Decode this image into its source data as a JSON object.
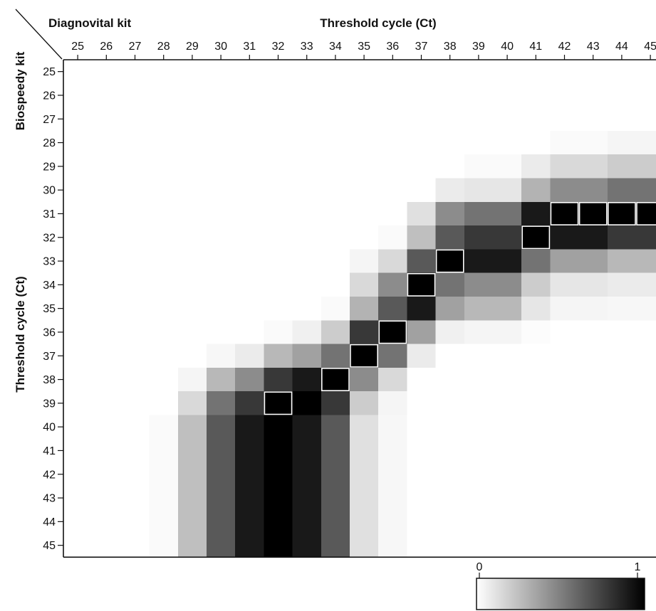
{
  "chart_data": {
    "type": "heatmap",
    "corner_x_title": "Diagnovital kit",
    "corner_y_title": "Biospeedy kit",
    "x_title": "Threshold cycle (Ct)",
    "y_title": "Threshold cycle (Ct)",
    "x_ticks": [
      "25",
      "26",
      "27",
      "28",
      "29",
      "30",
      "31",
      "32",
      "33",
      "34",
      "35",
      "36",
      "37",
      "38",
      "39",
      "40",
      "41",
      "42",
      "43",
      "44",
      "45"
    ],
    "y_ticks": [
      "25",
      "26",
      "27",
      "28",
      "29",
      "30",
      "31",
      "32",
      "33",
      "34",
      "35",
      "36",
      "37",
      "38",
      "39",
      "40",
      "41",
      "42",
      "43",
      "44",
      "45"
    ],
    "colorbar": {
      "min_label": "0",
      "max_label": "1",
      "min": 0,
      "max": 1
    },
    "cells": [
      {
        "y": 28,
        "x": [
          42,
          43
        ],
        "v": 0.02
      },
      {
        "y": 28,
        "x": [
          44,
          45
        ],
        "v": 0.04
      },
      {
        "y": 29,
        "x": [
          39,
          40
        ],
        "v": 0.02
      },
      {
        "y": 29,
        "x": [
          41,
          41
        ],
        "v": 0.08
      },
      {
        "y": 29,
        "x": [
          42,
          43
        ],
        "v": 0.15
      },
      {
        "y": 29,
        "x": [
          44,
          45
        ],
        "v": 0.2
      },
      {
        "y": 30,
        "x": [
          38,
          38
        ],
        "v": 0.08
      },
      {
        "y": 30,
        "x": [
          39,
          40
        ],
        "v": 0.1
      },
      {
        "y": 30,
        "x": [
          41,
          41
        ],
        "v": 0.3
      },
      {
        "y": 30,
        "x": [
          42,
          43
        ],
        "v": 0.45
      },
      {
        "y": 30,
        "x": [
          44,
          45
        ],
        "v": 0.55
      },
      {
        "y": 31,
        "x": [
          37,
          37
        ],
        "v": 0.12
      },
      {
        "y": 31,
        "x": [
          38,
          38
        ],
        "v": 0.45
      },
      {
        "y": 31,
        "x": [
          39,
          40
        ],
        "v": 0.55
      },
      {
        "y": 31,
        "x": [
          41,
          41
        ],
        "v": 0.9
      },
      {
        "y": 31,
        "x": [
          42,
          42
        ],
        "v": 1,
        "h": 1
      },
      {
        "y": 31,
        "x": [
          43,
          43
        ],
        "v": 1,
        "h": 1
      },
      {
        "y": 31,
        "x": [
          44,
          44
        ],
        "v": 1,
        "h": 1
      },
      {
        "y": 31,
        "x": [
          45,
          45
        ],
        "v": 1,
        "h": 1
      },
      {
        "y": 32,
        "x": [
          36,
          36
        ],
        "v": 0.02
      },
      {
        "y": 32,
        "x": [
          37,
          37
        ],
        "v": 0.25
      },
      {
        "y": 32,
        "x": [
          38,
          38
        ],
        "v": 0.65
      },
      {
        "y": 32,
        "x": [
          39,
          40
        ],
        "v": 0.78
      },
      {
        "y": 32,
        "x": [
          41,
          41
        ],
        "v": 1,
        "h": 1
      },
      {
        "y": 32,
        "x": [
          42,
          43
        ],
        "v": 0.9
      },
      {
        "y": 32,
        "x": [
          44,
          45
        ],
        "v": 0.78
      },
      {
        "y": 33,
        "x": [
          35,
          35
        ],
        "v": 0.04
      },
      {
        "y": 33,
        "x": [
          36,
          36
        ],
        "v": 0.15
      },
      {
        "y": 33,
        "x": [
          37,
          37
        ],
        "v": 0.65
      },
      {
        "y": 33,
        "x": [
          38,
          38
        ],
        "v": 1,
        "h": 1
      },
      {
        "y": 33,
        "x": [
          39,
          40
        ],
        "v": 0.9
      },
      {
        "y": 33,
        "x": [
          41,
          41
        ],
        "v": 0.55
      },
      {
        "y": 33,
        "x": [
          42,
          43
        ],
        "v": 0.37
      },
      {
        "y": 33,
        "x": [
          44,
          45
        ],
        "v": 0.28
      },
      {
        "y": 34,
        "x": [
          35,
          35
        ],
        "v": 0.15
      },
      {
        "y": 34,
        "x": [
          36,
          36
        ],
        "v": 0.45
      },
      {
        "y": 34,
        "x": [
          37,
          37
        ],
        "v": 1,
        "h": 1
      },
      {
        "y": 34,
        "x": [
          38,
          38
        ],
        "v": 0.55
      },
      {
        "y": 34,
        "x": [
          39,
          40
        ],
        "v": 0.45
      },
      {
        "y": 34,
        "x": [
          41,
          41
        ],
        "v": 0.2
      },
      {
        "y": 34,
        "x": [
          42,
          43
        ],
        "v": 0.1
      },
      {
        "y": 34,
        "x": [
          44,
          45
        ],
        "v": 0.08
      },
      {
        "y": 35,
        "x": [
          34,
          34
        ],
        "v": 0.02
      },
      {
        "y": 35,
        "x": [
          35,
          35
        ],
        "v": 0.3
      },
      {
        "y": 35,
        "x": [
          36,
          36
        ],
        "v": 0.65
      },
      {
        "y": 35,
        "x": [
          37,
          37
        ],
        "v": 0.9
      },
      {
        "y": 35,
        "x": [
          38,
          38
        ],
        "v": 0.37
      },
      {
        "y": 35,
        "x": [
          39,
          40
        ],
        "v": 0.28
      },
      {
        "y": 35,
        "x": [
          41,
          41
        ],
        "v": 0.1
      },
      {
        "y": 35,
        "x": [
          42,
          43
        ],
        "v": 0.04
      },
      {
        "y": 35,
        "x": [
          44,
          45
        ],
        "v": 0.03
      },
      {
        "y": 36,
        "x": [
          32,
          32
        ],
        "v": 0.02
      },
      {
        "y": 36,
        "x": [
          33,
          33
        ],
        "v": 0.06
      },
      {
        "y": 36,
        "x": [
          34,
          34
        ],
        "v": 0.2
      },
      {
        "y": 36,
        "x": [
          35,
          35
        ],
        "v": 0.78
      },
      {
        "y": 36,
        "x": [
          36,
          36
        ],
        "v": 1,
        "h": 1
      },
      {
        "y": 36,
        "x": [
          37,
          37
        ],
        "v": 0.37
      },
      {
        "y": 36,
        "x": [
          38,
          38
        ],
        "v": 0.06
      },
      {
        "y": 36,
        "x": [
          39,
          40
        ],
        "v": 0.04
      },
      {
        "y": 36,
        "x": [
          41,
          41
        ],
        "v": 0.01
      },
      {
        "y": 37,
        "x": [
          30,
          30
        ],
        "v": 0.03
      },
      {
        "y": 37,
        "x": [
          31,
          31
        ],
        "v": 0.08
      },
      {
        "y": 37,
        "x": [
          32,
          32
        ],
        "v": 0.28
      },
      {
        "y": 37,
        "x": [
          33,
          33
        ],
        "v": 0.37
      },
      {
        "y": 37,
        "x": [
          34,
          34
        ],
        "v": 0.55
      },
      {
        "y": 37,
        "x": [
          35,
          35
        ],
        "v": 1,
        "h": 1
      },
      {
        "y": 37,
        "x": [
          36,
          36
        ],
        "v": 0.55
      },
      {
        "y": 37,
        "x": [
          37,
          37
        ],
        "v": 0.08
      },
      {
        "y": 38,
        "x": [
          29,
          29
        ],
        "v": 0.04
      },
      {
        "y": 38,
        "x": [
          30,
          30
        ],
        "v": 0.28
      },
      {
        "y": 38,
        "x": [
          31,
          31
        ],
        "v": 0.45
      },
      {
        "y": 38,
        "x": [
          32,
          32
        ],
        "v": 0.78
      },
      {
        "y": 38,
        "x": [
          33,
          33
        ],
        "v": 0.9
      },
      {
        "y": 38,
        "x": [
          34,
          34
        ],
        "v": 1,
        "h": 1
      },
      {
        "y": 38,
        "x": [
          35,
          35
        ],
        "v": 0.45
      },
      {
        "y": 38,
        "x": [
          36,
          36
        ],
        "v": 0.15
      },
      {
        "y": 39,
        "x": [
          29,
          29
        ],
        "v": 0.15
      },
      {
        "y": 39,
        "x": [
          30,
          30
        ],
        "v": 0.55
      },
      {
        "y": 39,
        "x": [
          31,
          31
        ],
        "v": 0.78
      },
      {
        "y": 39,
        "x": [
          32,
          32
        ],
        "v": 1,
        "h": 1
      },
      {
        "y": 39,
        "x": [
          33,
          33
        ],
        "v": 1
      },
      {
        "y": 39,
        "x": [
          34,
          34
        ],
        "v": 0.78
      },
      {
        "y": 39,
        "x": [
          35,
          35
        ],
        "v": 0.2
      },
      {
        "y": 39,
        "x": [
          36,
          36
        ],
        "v": 0.04
      },
      {
        "y": 40,
        "x": [
          28,
          28
        ],
        "v": 0.02
      },
      {
        "y": 40,
        "x": [
          29,
          29
        ],
        "v": 0.25
      },
      {
        "y": 40,
        "x": [
          30,
          30
        ],
        "v": 0.65
      },
      {
        "y": 40,
        "x": [
          31,
          31
        ],
        "v": 0.9
      },
      {
        "y": 40,
        "x": [
          32,
          32
        ],
        "v": 1
      },
      {
        "y": 40,
        "x": [
          33,
          33
        ],
        "v": 0.9
      },
      {
        "y": 40,
        "x": [
          34,
          34
        ],
        "v": 0.65
      },
      {
        "y": 40,
        "x": [
          35,
          35
        ],
        "v": 0.12
      },
      {
        "y": 40,
        "x": [
          36,
          36
        ],
        "v": 0.03
      },
      {
        "y": 41,
        "x": [
          28,
          28
        ],
        "v": 0.02
      },
      {
        "y": 41,
        "x": [
          29,
          29
        ],
        "v": 0.25
      },
      {
        "y": 41,
        "x": [
          30,
          30
        ],
        "v": 0.65
      },
      {
        "y": 41,
        "x": [
          31,
          31
        ],
        "v": 0.9
      },
      {
        "y": 41,
        "x": [
          32,
          32
        ],
        "v": 1
      },
      {
        "y": 41,
        "x": [
          33,
          33
        ],
        "v": 0.9
      },
      {
        "y": 41,
        "x": [
          34,
          34
        ],
        "v": 0.65
      },
      {
        "y": 41,
        "x": [
          35,
          35
        ],
        "v": 0.12
      },
      {
        "y": 41,
        "x": [
          36,
          36
        ],
        "v": 0.03
      },
      {
        "y": 42,
        "x": [
          28,
          28
        ],
        "v": 0.02
      },
      {
        "y": 42,
        "x": [
          29,
          29
        ],
        "v": 0.25
      },
      {
        "y": 42,
        "x": [
          30,
          30
        ],
        "v": 0.65
      },
      {
        "y": 42,
        "x": [
          31,
          31
        ],
        "v": 0.9
      },
      {
        "y": 42,
        "x": [
          32,
          32
        ],
        "v": 1
      },
      {
        "y": 42,
        "x": [
          33,
          33
        ],
        "v": 0.9
      },
      {
        "y": 42,
        "x": [
          34,
          34
        ],
        "v": 0.65
      },
      {
        "y": 42,
        "x": [
          35,
          35
        ],
        "v": 0.12
      },
      {
        "y": 42,
        "x": [
          36,
          36
        ],
        "v": 0.03
      },
      {
        "y": 43,
        "x": [
          28,
          28
        ],
        "v": 0.02
      },
      {
        "y": 43,
        "x": [
          29,
          29
        ],
        "v": 0.25
      },
      {
        "y": 43,
        "x": [
          30,
          30
        ],
        "v": 0.65
      },
      {
        "y": 43,
        "x": [
          31,
          31
        ],
        "v": 0.9
      },
      {
        "y": 43,
        "x": [
          32,
          32
        ],
        "v": 1
      },
      {
        "y": 43,
        "x": [
          33,
          33
        ],
        "v": 0.9
      },
      {
        "y": 43,
        "x": [
          34,
          34
        ],
        "v": 0.65
      },
      {
        "y": 43,
        "x": [
          35,
          35
        ],
        "v": 0.12
      },
      {
        "y": 43,
        "x": [
          36,
          36
        ],
        "v": 0.03
      },
      {
        "y": 44,
        "x": [
          28,
          28
        ],
        "v": 0.02
      },
      {
        "y": 44,
        "x": [
          29,
          29
        ],
        "v": 0.25
      },
      {
        "y": 44,
        "x": [
          30,
          30
        ],
        "v": 0.65
      },
      {
        "y": 44,
        "x": [
          31,
          31
        ],
        "v": 0.9
      },
      {
        "y": 44,
        "x": [
          32,
          32
        ],
        "v": 1
      },
      {
        "y": 44,
        "x": [
          33,
          33
        ],
        "v": 0.9
      },
      {
        "y": 44,
        "x": [
          34,
          34
        ],
        "v": 0.65
      },
      {
        "y": 44,
        "x": [
          35,
          35
        ],
        "v": 0.12
      },
      {
        "y": 44,
        "x": [
          36,
          36
        ],
        "v": 0.03
      },
      {
        "y": 45,
        "x": [
          28,
          28
        ],
        "v": 0.02
      },
      {
        "y": 45,
        "x": [
          29,
          29
        ],
        "v": 0.25
      },
      {
        "y": 45,
        "x": [
          30,
          30
        ],
        "v": 0.65
      },
      {
        "y": 45,
        "x": [
          31,
          31
        ],
        "v": 0.9
      },
      {
        "y": 45,
        "x": [
          32,
          32
        ],
        "v": 1
      },
      {
        "y": 45,
        "x": [
          33,
          33
        ],
        "v": 0.9
      },
      {
        "y": 45,
        "x": [
          34,
          34
        ],
        "v": 0.65
      },
      {
        "y": 45,
        "x": [
          35,
          35
        ],
        "v": 0.12
      },
      {
        "y": 45,
        "x": [
          36,
          36
        ],
        "v": 0.03
      }
    ]
  }
}
